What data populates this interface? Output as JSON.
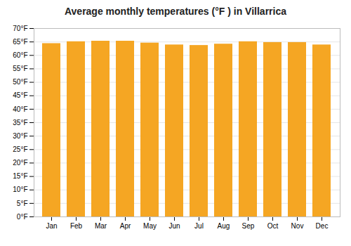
{
  "chart_data": {
    "type": "bar",
    "title": "Average monthly temperatures (°F ) in Villarrica",
    "categories": [
      "Jan",
      "Feb",
      "Mar",
      "Apr",
      "May",
      "Jun",
      "Jul",
      "Aug",
      "Sep",
      "Oct",
      "Nov",
      "Dec"
    ],
    "values": [
      64.4,
      65.1,
      65.3,
      65.3,
      64.6,
      63.9,
      63.7,
      64.2,
      65.1,
      64.8,
      64.8,
      63.9
    ],
    "color": "#F5A623",
    "ylim": [
      0,
      70
    ],
    "yticks": [
      {
        "value": 0,
        "label": "0°F"
      },
      {
        "value": 5,
        "label": "5°F"
      },
      {
        "value": 10,
        "label": "10°F"
      },
      {
        "value": 15,
        "label": "15°F"
      },
      {
        "value": 20,
        "label": "20°F"
      },
      {
        "value": 25,
        "label": "25°F"
      },
      {
        "value": 30,
        "label": "30°F"
      },
      {
        "value": 35,
        "label": "35°F"
      },
      {
        "value": 40,
        "label": "40°F"
      },
      {
        "value": 45,
        "label": "45°F"
      },
      {
        "value": 50,
        "label": "50°F"
      },
      {
        "value": 55,
        "label": "55°F"
      },
      {
        "value": 60,
        "label": "60°F"
      },
      {
        "value": 65,
        "label": "65°F"
      },
      {
        "value": 70,
        "label": "70°F"
      }
    ],
    "grid": true
  }
}
